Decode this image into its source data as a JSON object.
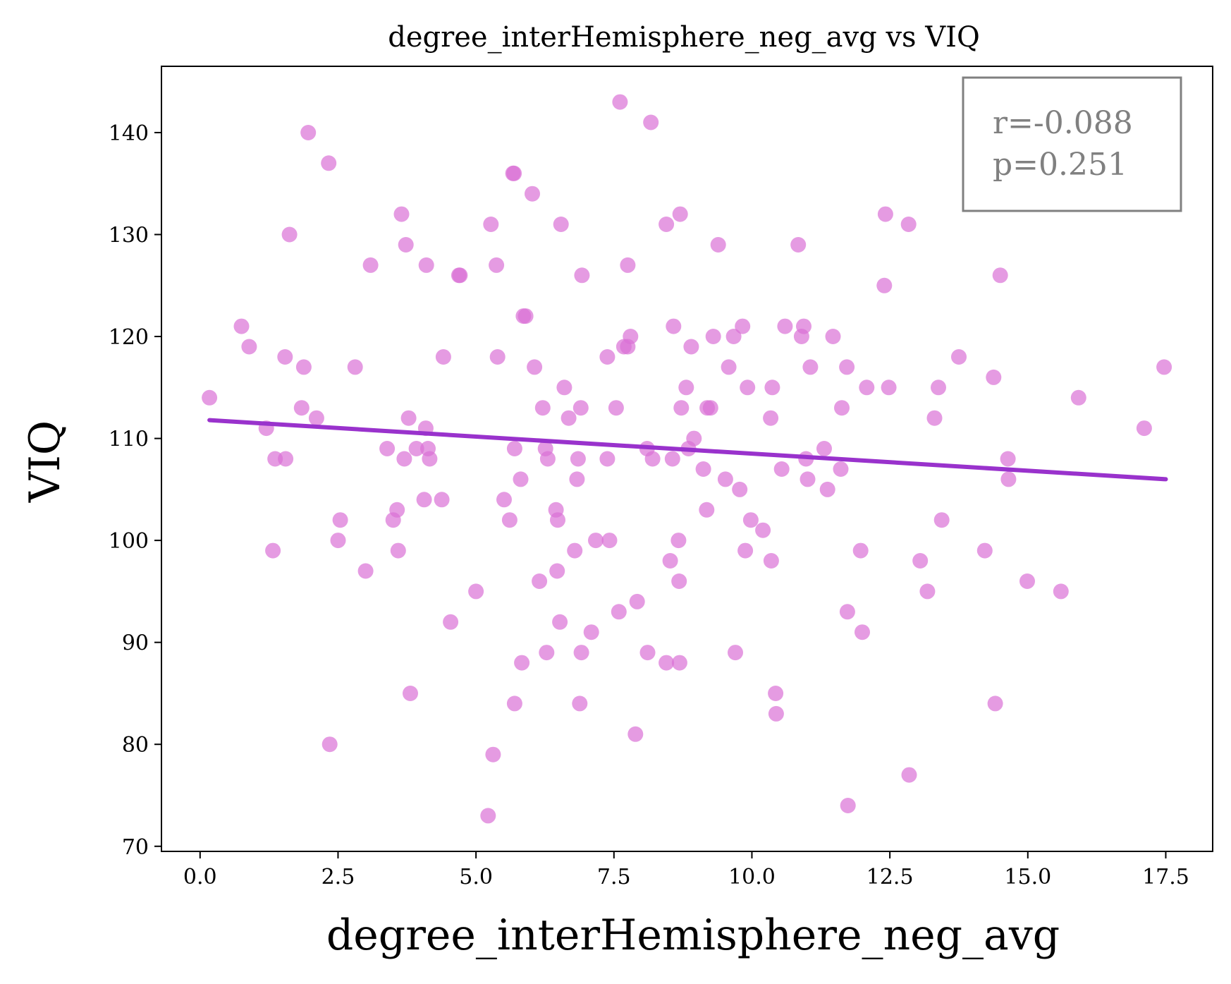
{
  "chart_data": {
    "type": "scatter",
    "title": "degree_interHemisphere_neg_avg vs VIQ",
    "xlabel": "degree_interHemisphere_neg_avg",
    "ylabel": "VIQ",
    "xlim": [
      -0.7,
      18.35
    ],
    "ylim": [
      69.5,
      146.5
    ],
    "xticks": [
      0.0,
      2.5,
      5.0,
      7.5,
      10.0,
      12.5,
      15.0,
      17.5
    ],
    "xtick_labels": [
      "0.0",
      "2.5",
      "5.0",
      "7.5",
      "10.0",
      "12.5",
      "15.0",
      "17.5"
    ],
    "yticks": [
      70,
      80,
      90,
      100,
      110,
      120,
      130,
      140
    ],
    "ytick_labels": [
      "70",
      "80",
      "90",
      "100",
      "110",
      "120",
      "130",
      "140"
    ],
    "grid": false,
    "legend": "none",
    "stats": {
      "r_text": "r=-0.088",
      "p_text": "p=0.251",
      "placement": "top-right"
    },
    "colors": {
      "points": "#da70d6",
      "fit_line": "#9932cc",
      "stats_text": "#808080",
      "stats_box": "#808080"
    },
    "fit_line": {
      "x": [
        0.17,
        17.5
      ],
      "y": [
        111.8,
        106.0
      ]
    },
    "points": [
      [
        0.17,
        114
      ],
      [
        0.75,
        121
      ],
      [
        0.89,
        119
      ],
      [
        1.2,
        111
      ],
      [
        1.32,
        99
      ],
      [
        1.36,
        108
      ],
      [
        1.54,
        118
      ],
      [
        1.55,
        108
      ],
      [
        1.62,
        130
      ],
      [
        1.84,
        113
      ],
      [
        1.88,
        117
      ],
      [
        1.96,
        140
      ],
      [
        2.11,
        112
      ],
      [
        2.33,
        137
      ],
      [
        2.35,
        80
      ],
      [
        2.5,
        100
      ],
      [
        2.54,
        102
      ],
      [
        2.81,
        117
      ],
      [
        3.0,
        97
      ],
      [
        3.09,
        127
      ],
      [
        3.39,
        109
      ],
      [
        3.5,
        102
      ],
      [
        3.57,
        103
      ],
      [
        3.59,
        99
      ],
      [
        3.65,
        132
      ],
      [
        3.7,
        108
      ],
      [
        3.73,
        129
      ],
      [
        3.78,
        112
      ],
      [
        3.81,
        85
      ],
      [
        3.92,
        109
      ],
      [
        4.06,
        104
      ],
      [
        4.09,
        111
      ],
      [
        4.1,
        127
      ],
      [
        4.13,
        109
      ],
      [
        4.16,
        108
      ],
      [
        4.38,
        104
      ],
      [
        4.41,
        118
      ],
      [
        4.54,
        92
      ],
      [
        4.69,
        126
      ],
      [
        4.71,
        126
      ],
      [
        5.0,
        95
      ],
      [
        5.22,
        73
      ],
      [
        5.27,
        131
      ],
      [
        5.31,
        79
      ],
      [
        5.37,
        127
      ],
      [
        5.39,
        118
      ],
      [
        5.51,
        104
      ],
      [
        5.61,
        102
      ],
      [
        5.67,
        136
      ],
      [
        5.69,
        136
      ],
      [
        5.7,
        109
      ],
      [
        5.7,
        84
      ],
      [
        5.81,
        106
      ],
      [
        5.83,
        88
      ],
      [
        5.86,
        122
      ],
      [
        5.9,
        122
      ],
      [
        6.02,
        134
      ],
      [
        6.06,
        117
      ],
      [
        6.15,
        96
      ],
      [
        6.21,
        113
      ],
      [
        6.26,
        109
      ],
      [
        6.28,
        89
      ],
      [
        6.3,
        108
      ],
      [
        6.45,
        103
      ],
      [
        6.47,
        97
      ],
      [
        6.48,
        102
      ],
      [
        6.52,
        92
      ],
      [
        6.54,
        131
      ],
      [
        6.6,
        115
      ],
      [
        6.68,
        112
      ],
      [
        6.79,
        99
      ],
      [
        6.83,
        106
      ],
      [
        6.85,
        108
      ],
      [
        6.88,
        84
      ],
      [
        6.9,
        113
      ],
      [
        6.91,
        89
      ],
      [
        6.92,
        126
      ],
      [
        7.09,
        91
      ],
      [
        7.17,
        100
      ],
      [
        7.38,
        118
      ],
      [
        7.38,
        108
      ],
      [
        7.42,
        100
      ],
      [
        7.54,
        113
      ],
      [
        7.59,
        93
      ],
      [
        7.61,
        143
      ],
      [
        7.68,
        119
      ],
      [
        7.75,
        119
      ],
      [
        7.75,
        127
      ],
      [
        7.8,
        120
      ],
      [
        7.89,
        81
      ],
      [
        7.92,
        94
      ],
      [
        8.1,
        109
      ],
      [
        8.11,
        89
      ],
      [
        8.17,
        141
      ],
      [
        8.2,
        108
      ],
      [
        8.45,
        88
      ],
      [
        8.45,
        131
      ],
      [
        8.52,
        98
      ],
      [
        8.56,
        108
      ],
      [
        8.58,
        121
      ],
      [
        8.67,
        100
      ],
      [
        8.68,
        96
      ],
      [
        8.69,
        88
      ],
      [
        8.7,
        132
      ],
      [
        8.72,
        113
      ],
      [
        8.81,
        115
      ],
      [
        8.85,
        109
      ],
      [
        8.9,
        119
      ],
      [
        8.95,
        110
      ],
      [
        9.12,
        107
      ],
      [
        9.18,
        103
      ],
      [
        9.19,
        113
      ],
      [
        9.25,
        113
      ],
      [
        9.3,
        120
      ],
      [
        9.39,
        129
      ],
      [
        9.52,
        106
      ],
      [
        9.58,
        117
      ],
      [
        9.67,
        120
      ],
      [
        9.7,
        89
      ],
      [
        9.78,
        105
      ],
      [
        9.83,
        121
      ],
      [
        9.88,
        99
      ],
      [
        9.92,
        115
      ],
      [
        9.98,
        102
      ],
      [
        10.2,
        101
      ],
      [
        10.34,
        112
      ],
      [
        10.35,
        98
      ],
      [
        10.37,
        115
      ],
      [
        10.43,
        85
      ],
      [
        10.44,
        83
      ],
      [
        10.54,
        107
      ],
      [
        10.6,
        121
      ],
      [
        10.84,
        129
      ],
      [
        10.9,
        120
      ],
      [
        10.94,
        121
      ],
      [
        10.98,
        108
      ],
      [
        11.01,
        106
      ],
      [
        11.06,
        117
      ],
      [
        11.31,
        109
      ],
      [
        11.37,
        105
      ],
      [
        11.47,
        120
      ],
      [
        11.61,
        107
      ],
      [
        11.63,
        113
      ],
      [
        11.72,
        117
      ],
      [
        11.73,
        93
      ],
      [
        11.74,
        74
      ],
      [
        11.97,
        99
      ],
      [
        12.0,
        91
      ],
      [
        12.08,
        115
      ],
      [
        12.4,
        125
      ],
      [
        12.42,
        132
      ],
      [
        12.48,
        115
      ],
      [
        12.84,
        131
      ],
      [
        12.85,
        77
      ],
      [
        13.05,
        98
      ],
      [
        13.18,
        95
      ],
      [
        13.31,
        112
      ],
      [
        13.38,
        115
      ],
      [
        13.44,
        102
      ],
      [
        13.75,
        118
      ],
      [
        14.22,
        99
      ],
      [
        14.38,
        116
      ],
      [
        14.41,
        84
      ],
      [
        14.5,
        126
      ],
      [
        14.64,
        108
      ],
      [
        14.65,
        106
      ],
      [
        14.99,
        96
      ],
      [
        15.6,
        95
      ],
      [
        15.92,
        114
      ],
      [
        17.11,
        111
      ],
      [
        17.47,
        117
      ]
    ]
  }
}
